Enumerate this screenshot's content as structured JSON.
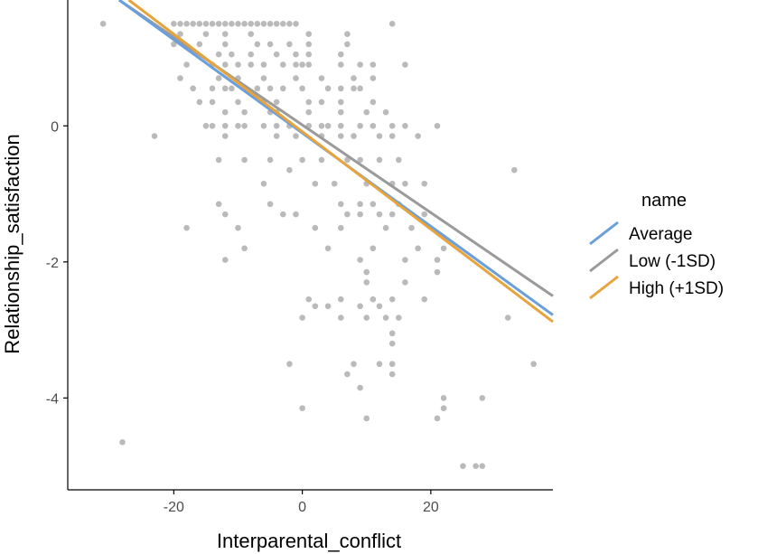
{
  "chart_data": {
    "type": "scatter",
    "xlabel": "Interparental_conflict",
    "ylabel": "Relationship_satisfaction",
    "xlim": [
      -36.5,
      39
    ],
    "ylim": [
      -5.35,
      1.85
    ],
    "x_ticks": [
      -20,
      0,
      20
    ],
    "x_tick_labels": [
      "-20",
      "0",
      "20"
    ],
    "y_ticks": [
      0,
      -2,
      -4
    ],
    "y_tick_labels": [
      "0",
      "-2",
      "-4"
    ],
    "grid": false,
    "legend": {
      "title": "name",
      "position": "right"
    },
    "points": [
      [
        -31,
        1.5
      ],
      [
        -28,
        -4.65
      ],
      [
        -20,
        1.5
      ],
      [
        -19,
        1.5
      ],
      [
        -18,
        1.5
      ],
      [
        -17,
        1.5
      ],
      [
        -16,
        1.5
      ],
      [
        -15,
        1.5
      ],
      [
        -14,
        1.5
      ],
      [
        -13,
        1.5
      ],
      [
        -12,
        1.5
      ],
      [
        -11,
        1.5
      ],
      [
        -10,
        1.5
      ],
      [
        -9,
        1.5
      ],
      [
        -8,
        1.5
      ],
      [
        -7,
        1.5
      ],
      [
        -6,
        1.5
      ],
      [
        -5,
        1.5
      ],
      [
        -4,
        1.5
      ],
      [
        -3,
        1.5
      ],
      [
        -2,
        1.5
      ],
      [
        -1,
        1.5
      ],
      [
        14,
        1.5
      ],
      [
        -19,
        1.35
      ],
      [
        -15,
        1.35
      ],
      [
        -12,
        1.35
      ],
      [
        -8,
        1.35
      ],
      [
        1,
        1.35
      ],
      [
        7,
        1.35
      ],
      [
        -20,
        1.2
      ],
      [
        -16,
        1.2
      ],
      [
        -12,
        1.2
      ],
      [
        -7,
        1.2
      ],
      [
        -5,
        1.2
      ],
      [
        -2,
        1.2
      ],
      [
        1,
        1.2
      ],
      [
        7,
        1.2
      ],
      [
        -13,
        1.05
      ],
      [
        -11,
        1.05
      ],
      [
        -8,
        1.05
      ],
      [
        -4,
        1.05
      ],
      [
        -1,
        1.05
      ],
      [
        1,
        1.05
      ],
      [
        6,
        1.05
      ],
      [
        -18,
        0.9
      ],
      [
        -14,
        0.9
      ],
      [
        -12,
        0.9
      ],
      [
        -10,
        0.9
      ],
      [
        -8,
        0.9
      ],
      [
        -6,
        0.9
      ],
      [
        -3,
        0.9
      ],
      [
        -1,
        0.9
      ],
      [
        0,
        0.9
      ],
      [
        1,
        0.9
      ],
      [
        6,
        0.9
      ],
      [
        9,
        0.9
      ],
      [
        11,
        0.9
      ],
      [
        16,
        0.9
      ],
      [
        -19,
        0.7
      ],
      [
        -13,
        0.7
      ],
      [
        -10,
        0.7
      ],
      [
        -6,
        0.7
      ],
      [
        -1,
        0.7
      ],
      [
        3,
        0.7
      ],
      [
        8,
        0.7
      ],
      [
        11,
        0.7
      ],
      [
        -17,
        0.55
      ],
      [
        -14,
        0.55
      ],
      [
        -12,
        0.55
      ],
      [
        -11,
        0.55
      ],
      [
        -9,
        0.55
      ],
      [
        -7,
        0.55
      ],
      [
        -5,
        0.55
      ],
      [
        -3,
        0.55
      ],
      [
        0,
        0.55
      ],
      [
        4,
        0.55
      ],
      [
        6,
        0.55
      ],
      [
        8,
        0.55
      ],
      [
        9,
        0.55
      ],
      [
        -16,
        0.35
      ],
      [
        -14,
        0.35
      ],
      [
        -10,
        0.35
      ],
      [
        -6,
        0.35
      ],
      [
        -4,
        0.35
      ],
      [
        1,
        0.35
      ],
      [
        3,
        0.35
      ],
      [
        6,
        0.35
      ],
      [
        11,
        0.35
      ],
      [
        -12,
        0.2
      ],
      [
        -9,
        0.2
      ],
      [
        -5,
        0.2
      ],
      [
        -4,
        0.2
      ],
      [
        1,
        0.2
      ],
      [
        6,
        0.2
      ],
      [
        10,
        0.2
      ],
      [
        13,
        0.2
      ],
      [
        -15,
        0
      ],
      [
        -14,
        0
      ],
      [
        -12,
        0
      ],
      [
        -10,
        0
      ],
      [
        -9,
        0
      ],
      [
        -6,
        0
      ],
      [
        -4,
        0
      ],
      [
        -2,
        0
      ],
      [
        1,
        0
      ],
      [
        3,
        0
      ],
      [
        4,
        0
      ],
      [
        6,
        0
      ],
      [
        9,
        0
      ],
      [
        11,
        0
      ],
      [
        14,
        0
      ],
      [
        16,
        0
      ],
      [
        21,
        0
      ],
      [
        -23,
        -0.15
      ],
      [
        -12,
        -0.15
      ],
      [
        -4,
        -0.15
      ],
      [
        -1,
        -0.15
      ],
      [
        3,
        -0.15
      ],
      [
        6,
        -0.15
      ],
      [
        8,
        -0.15
      ],
      [
        12,
        -0.15
      ],
      [
        14,
        -0.15
      ],
      [
        18,
        -0.15
      ],
      [
        -13,
        -0.5
      ],
      [
        -9,
        -0.5
      ],
      [
        -5,
        -0.5
      ],
      [
        0,
        -0.5
      ],
      [
        3,
        -0.5
      ],
      [
        7,
        -0.5
      ],
      [
        9,
        -0.5
      ],
      [
        12,
        -0.5
      ],
      [
        15,
        -0.5
      ],
      [
        -2,
        -0.65
      ],
      [
        33,
        -0.65
      ],
      [
        -6,
        -0.85
      ],
      [
        2,
        -0.85
      ],
      [
        5,
        -0.85
      ],
      [
        10,
        -0.85
      ],
      [
        14,
        -0.85
      ],
      [
        16,
        -0.85
      ],
      [
        19,
        -0.85
      ],
      [
        -13,
        -1.15
      ],
      [
        -5,
        -1.15
      ],
      [
        6,
        -1.15
      ],
      [
        9,
        -1.15
      ],
      [
        11,
        -1.15
      ],
      [
        15,
        -1.15
      ],
      [
        -12,
        -1.3
      ],
      [
        -3,
        -1.3
      ],
      [
        -1,
        -1.3
      ],
      [
        7,
        -1.3
      ],
      [
        9,
        -1.3
      ],
      [
        12,
        -1.3
      ],
      [
        14,
        -1.3
      ],
      [
        19,
        -1.3
      ],
      [
        -18,
        -1.5
      ],
      [
        -10,
        -1.5
      ],
      [
        2,
        -1.5
      ],
      [
        6,
        -1.5
      ],
      [
        13,
        -1.5
      ],
      [
        17,
        -1.5
      ],
      [
        -9,
        -1.8
      ],
      [
        4,
        -1.8
      ],
      [
        11,
        -1.8
      ],
      [
        18,
        -1.8
      ],
      [
        22,
        -1.8
      ],
      [
        -12,
        -1.97
      ],
      [
        9,
        -1.97
      ],
      [
        16,
        -1.97
      ],
      [
        21,
        -1.97
      ],
      [
        10,
        -2.15
      ],
      [
        21,
        -2.15
      ],
      [
        10,
        -2.3
      ],
      [
        16,
        -2.3
      ],
      [
        1,
        -2.55
      ],
      [
        6,
        -2.55
      ],
      [
        11,
        -2.55
      ],
      [
        14,
        -2.55
      ],
      [
        19,
        -2.55
      ],
      [
        2,
        -2.65
      ],
      [
        4,
        -2.65
      ],
      [
        9,
        -2.65
      ],
      [
        12,
        -2.65
      ],
      [
        0,
        -2.82
      ],
      [
        6,
        -2.82
      ],
      [
        10,
        -2.82
      ],
      [
        13,
        -2.82
      ],
      [
        15,
        -2.82
      ],
      [
        32,
        -2.82
      ],
      [
        14,
        -3.05
      ],
      [
        14,
        -3.2
      ],
      [
        -2,
        -3.5
      ],
      [
        8,
        -3.5
      ],
      [
        12,
        -3.5
      ],
      [
        14,
        -3.5
      ],
      [
        36,
        -3.5
      ],
      [
        7,
        -3.65
      ],
      [
        14,
        -3.65
      ],
      [
        9,
        -3.85
      ],
      [
        22,
        -4
      ],
      [
        28,
        -4
      ],
      [
        22,
        -4.15
      ],
      [
        0,
        -4.15
      ],
      [
        10,
        -4.3
      ],
      [
        21,
        -4.3
      ],
      [
        25,
        -5
      ],
      [
        27,
        -5
      ],
      [
        28,
        -5
      ]
    ],
    "series": [
      {
        "name": "Average",
        "color": "#6a9fdc",
        "x": [
          -28.5,
          39
        ],
        "y": [
          1.85,
          -2.78
        ]
      },
      {
        "name": "Low (-1SD)",
        "color": "#9a9a9a",
        "x": [
          -28.5,
          39
        ],
        "y": [
          1.85,
          -2.5
        ]
      },
      {
        "name": "High (+1SD)",
        "color": "#e7a33c",
        "x": [
          -27.0,
          39
        ],
        "y": [
          1.85,
          -2.88
        ]
      }
    ]
  }
}
